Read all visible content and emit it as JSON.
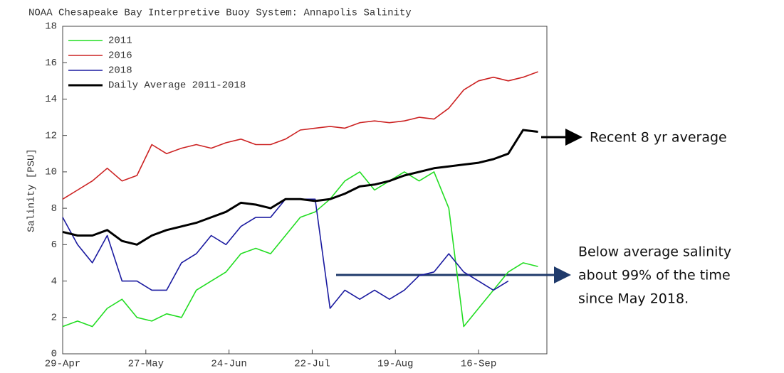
{
  "chart_data": {
    "type": "line",
    "title": "NOAA Chesapeake Bay Interpretive Buoy System: Annapolis Salinity",
    "y_label": "Salinity [PSU]",
    "x": [
      0,
      5,
      10,
      15,
      20,
      25,
      30,
      35,
      40,
      45,
      50,
      55,
      60,
      65,
      70,
      75,
      80,
      85,
      90,
      95,
      100,
      105,
      110,
      115,
      120,
      125,
      130,
      135,
      140,
      145,
      150,
      155,
      160
    ],
    "xlim": [
      0,
      163
    ],
    "xticks": [
      {
        "value": 0,
        "label": "29-Apr"
      },
      {
        "value": 28,
        "label": "27-May"
      },
      {
        "value": 56,
        "label": "24-Jun"
      },
      {
        "value": 84,
        "label": "22-Jul"
      },
      {
        "value": 112,
        "label": "19-Aug"
      },
      {
        "value": 140,
        "label": "16-Sep"
      }
    ],
    "ylim": [
      0,
      18
    ],
    "yticks": [
      0,
      2,
      4,
      6,
      8,
      10,
      12,
      14,
      16,
      18
    ],
    "legend": "upper-left",
    "series": [
      {
        "name": "2011",
        "color": "#22dd22",
        "width": 1.6,
        "values": [
          1.5,
          1.8,
          1.5,
          2.5,
          3,
          2,
          1.8,
          2.2,
          2,
          3.5,
          4,
          4.5,
          5.5,
          5.8,
          5.5,
          6.5,
          7.5,
          7.8,
          8.5,
          9.5,
          10,
          9,
          9.5,
          10,
          9.5,
          10,
          8,
          1.5,
          2.5,
          3.5,
          4.5,
          5,
          4.8
        ]
      },
      {
        "name": "2016",
        "color": "#cc2222",
        "width": 1.6,
        "values": [
          8.5,
          9,
          9.5,
          10.2,
          9.5,
          9.8,
          11.5,
          11,
          11.3,
          11.5,
          11.3,
          11.6,
          11.8,
          11.5,
          11.5,
          11.8,
          12.3,
          12.4,
          12.5,
          12.4,
          12.7,
          12.8,
          12.7,
          12.8,
          13,
          12.9,
          13.5,
          14.5,
          15,
          15.2,
          15,
          15.2,
          15.5
        ]
      },
      {
        "name": "2018",
        "color": "#1a1aa0",
        "width": 1.6,
        "values": [
          7.5,
          6,
          5,
          6.5,
          4,
          4,
          3.5,
          3.5,
          5,
          5.5,
          6.5,
          6,
          7,
          7.5,
          7.5,
          8.5,
          8.5,
          8.5,
          2.5,
          3.5,
          3,
          3.5,
          3,
          3.5,
          4.3,
          4.5,
          5.5,
          4.5,
          4,
          3.5,
          4,
          null,
          null
        ]
      },
      {
        "name": "Daily Average 2011-2018",
        "color": "#000000",
        "width": 3,
        "values": [
          6.7,
          6.5,
          6.5,
          6.8,
          6.2,
          6,
          6.5,
          6.8,
          7,
          7.2,
          7.5,
          7.8,
          8.3,
          8.2,
          8,
          8.5,
          8.5,
          8.4,
          8.5,
          8.8,
          9.2,
          9.3,
          9.5,
          9.8,
          10,
          10.2,
          10.3,
          10.4,
          10.5,
          10.7,
          11,
          12.3,
          12.2
        ]
      }
    ],
    "annotation_average": "Recent 8 yr average",
    "annotation_below": [
      "Below average salinity",
      "about 99% of the time",
      "since May 2018."
    ]
  }
}
